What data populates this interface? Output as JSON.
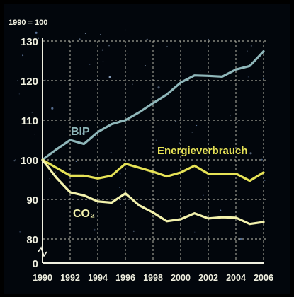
{
  "chart_data": {
    "type": "line",
    "index_label": "1990 = 100",
    "x": [
      1990,
      1991,
      1992,
      1993,
      1994,
      1995,
      1996,
      1997,
      1998,
      1999,
      2000,
      2001,
      2002,
      2003,
      2004,
      2005,
      2006
    ],
    "x_ticks": [
      "1990",
      "1992",
      "1994",
      "1996",
      "1998",
      "2000",
      "2002",
      "2004",
      "2006"
    ],
    "y_ticks": [
      "0",
      "80",
      "90",
      "100",
      "110",
      "120",
      "130"
    ],
    "ylim": [
      80,
      130
    ],
    "axis_break": true,
    "grid": true,
    "series": [
      {
        "name": "BIP",
        "color": "#8fb7ba",
        "values": [
          100,
          102.6,
          105,
          104,
          107,
          109,
          110,
          112,
          114.3,
          116.5,
          119.5,
          121.3,
          121.2,
          121,
          122.8,
          123.7,
          127.4
        ]
      },
      {
        "name": "Energieverbrauch",
        "color": "#e6e256",
        "values": [
          100,
          98,
          96,
          96,
          95.3,
          96,
          99,
          98,
          97,
          95.8,
          96.8,
          98.5,
          96.5,
          96.5,
          96.5,
          94.7,
          96.8
        ]
      },
      {
        "name": "CO₂",
        "color": "#f3f2ad",
        "values": [
          100,
          95.5,
          91.8,
          91,
          89.5,
          89.2,
          91.5,
          88.5,
          86.7,
          84.5,
          85,
          86.5,
          85.2,
          85.5,
          85.4,
          83.8,
          84.3
        ]
      }
    ]
  },
  "colors": {
    "background": "#000000",
    "plot_bg": "#050a12",
    "axis": "#f0f0e0",
    "grid": "#c8c8b8"
  }
}
